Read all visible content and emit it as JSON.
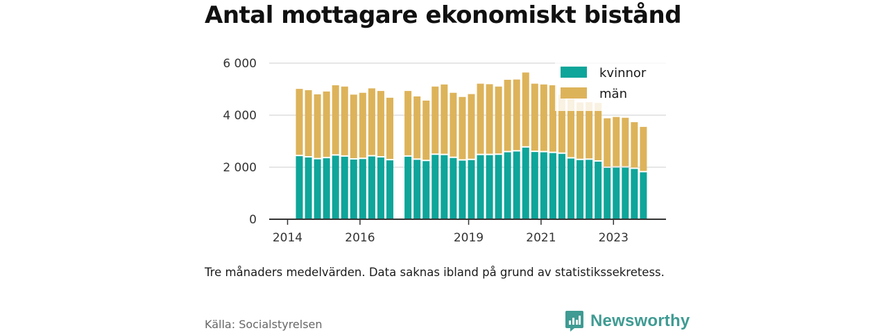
{
  "title": "Antal mottagare ekonomiskt bistånd",
  "note": "Tre månaders medelvärden. Data saknas ibland på grund av statistikssekretess.",
  "source": "Källa: Socialstyrelsen",
  "brand": {
    "name": "Newsworthy",
    "logo_icon": "newsworthy-chart-icon"
  },
  "colors": {
    "kvinnor": "#0ea59a",
    "man": "#ddb35a",
    "grid": "#dddddd",
    "axis": "#333333"
  },
  "chart_data": {
    "type": "bar",
    "stacked": true,
    "title": "Antal mottagare ekonomiskt bistånd",
    "x": [
      "2014-03",
      "2014-06",
      "2014-09",
      "2014-12",
      "2015-03",
      "2015-06",
      "2015-09",
      "2015-12",
      "2016-03",
      "2016-06",
      "2016-09",
      "2016-12",
      "2017-03",
      "2017-06",
      "2017-09",
      "2017-12",
      "2018-03",
      "2018-06",
      "2018-09",
      "2018-12",
      "2019-03",
      "2019-06",
      "2019-09",
      "2019-12",
      "2020-03",
      "2020-06",
      "2020-09",
      "2020-12",
      "2021-03",
      "2021-06",
      "2021-09",
      "2021-12",
      "2022-03",
      "2022-06",
      "2022-09",
      "2022-12",
      "2023-03",
      "2023-06",
      "2023-09",
      "2023-12"
    ],
    "series": [
      {
        "name": "kvinnor",
        "values": [
          2450,
          2400,
          2330,
          2370,
          2470,
          2430,
          2320,
          2340,
          2440,
          2400,
          2290,
          null,
          2430,
          2310,
          2260,
          2500,
          2490,
          2380,
          2280,
          2300,
          2490,
          2490,
          2500,
          2600,
          2630,
          2780,
          2610,
          2600,
          2570,
          2540,
          2360,
          2300,
          2310,
          2240,
          2000,
          2010,
          2010,
          1960,
          1830,
          null
        ]
      },
      {
        "name": "män",
        "values": [
          2560,
          2560,
          2470,
          2540,
          2680,
          2670,
          2470,
          2520,
          2590,
          2530,
          2380,
          null,
          2500,
          2410,
          2300,
          2600,
          2690,
          2480,
          2420,
          2510,
          2720,
          2700,
          2600,
          2760,
          2740,
          2860,
          2600,
          2580,
          2580,
          2250,
          2260,
          2190,
          2190,
          2230,
          1880,
          1920,
          1890,
          1770,
          1720,
          null
        ]
      }
    ],
    "legend": [
      "kvinnor",
      "män"
    ],
    "legend_position": "top-right",
    "xtick_labels": [
      "2014",
      "2016",
      "2019",
      "2021",
      "2023"
    ],
    "ytick_labels": [
      "0",
      "2 000",
      "4 000",
      "6 000"
    ],
    "yticks": [
      0,
      2000,
      4000,
      6000
    ],
    "ylim": [
      0,
      6000
    ],
    "grid": "horizontal",
    "xlabel": "",
    "ylabel": ""
  }
}
